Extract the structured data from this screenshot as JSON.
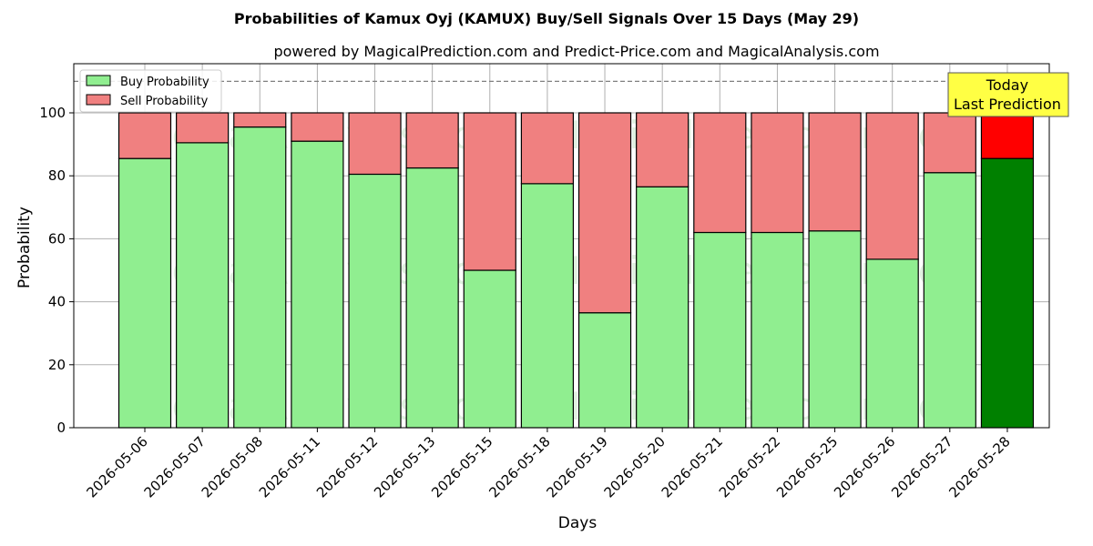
{
  "chart_data": {
    "type": "bar",
    "stacked": true,
    "title": "Probabilities of Kamux Oyj (KAMUX) Buy/Sell Signals Over 15 Days (May 29)",
    "subtitle": "powered by MagicalPrediction.com and Predict-Price.com and MagicalAnalysis.com",
    "xlabel": "Days",
    "ylabel": "Probability",
    "ylim": [
      0,
      115
    ],
    "yticks": [
      0,
      20,
      40,
      60,
      80,
      100
    ],
    "grid": true,
    "legend_position": "top-left",
    "reference_line": 110,
    "categories": [
      "2026-05-06",
      "2026-05-07",
      "2026-05-08",
      "2026-05-11",
      "2026-05-12",
      "2026-05-13",
      "2026-05-15",
      "2026-05-18",
      "2026-05-19",
      "2026-05-20",
      "2026-05-21",
      "2026-05-22",
      "2026-05-25",
      "2026-05-26",
      "2026-05-27",
      "2026-05-28"
    ],
    "series": [
      {
        "name": "Buy Probability",
        "color": "#90ee90",
        "highlight_color": "#008000",
        "values": [
          85.5,
          90.5,
          95.5,
          91,
          80.5,
          82.5,
          50,
          77.5,
          36.5,
          76.5,
          62,
          62,
          62.5,
          53.5,
          81,
          85.5
        ]
      },
      {
        "name": "Sell Probability",
        "color": "#f08080",
        "highlight_color": "#ff0000",
        "values": [
          14.5,
          9.5,
          4.5,
          9,
          19.5,
          17.5,
          50,
          22.5,
          63.5,
          23.5,
          38,
          38,
          37.5,
          46.5,
          19,
          14.5
        ]
      }
    ],
    "highlight_index": 15,
    "annotation": {
      "lines": [
        "Today",
        "Last Prediction"
      ],
      "bg_color": "#ffff44"
    },
    "watermarks": [
      "MagicalAnalysis.com",
      "MagicalPrediction.com"
    ]
  }
}
